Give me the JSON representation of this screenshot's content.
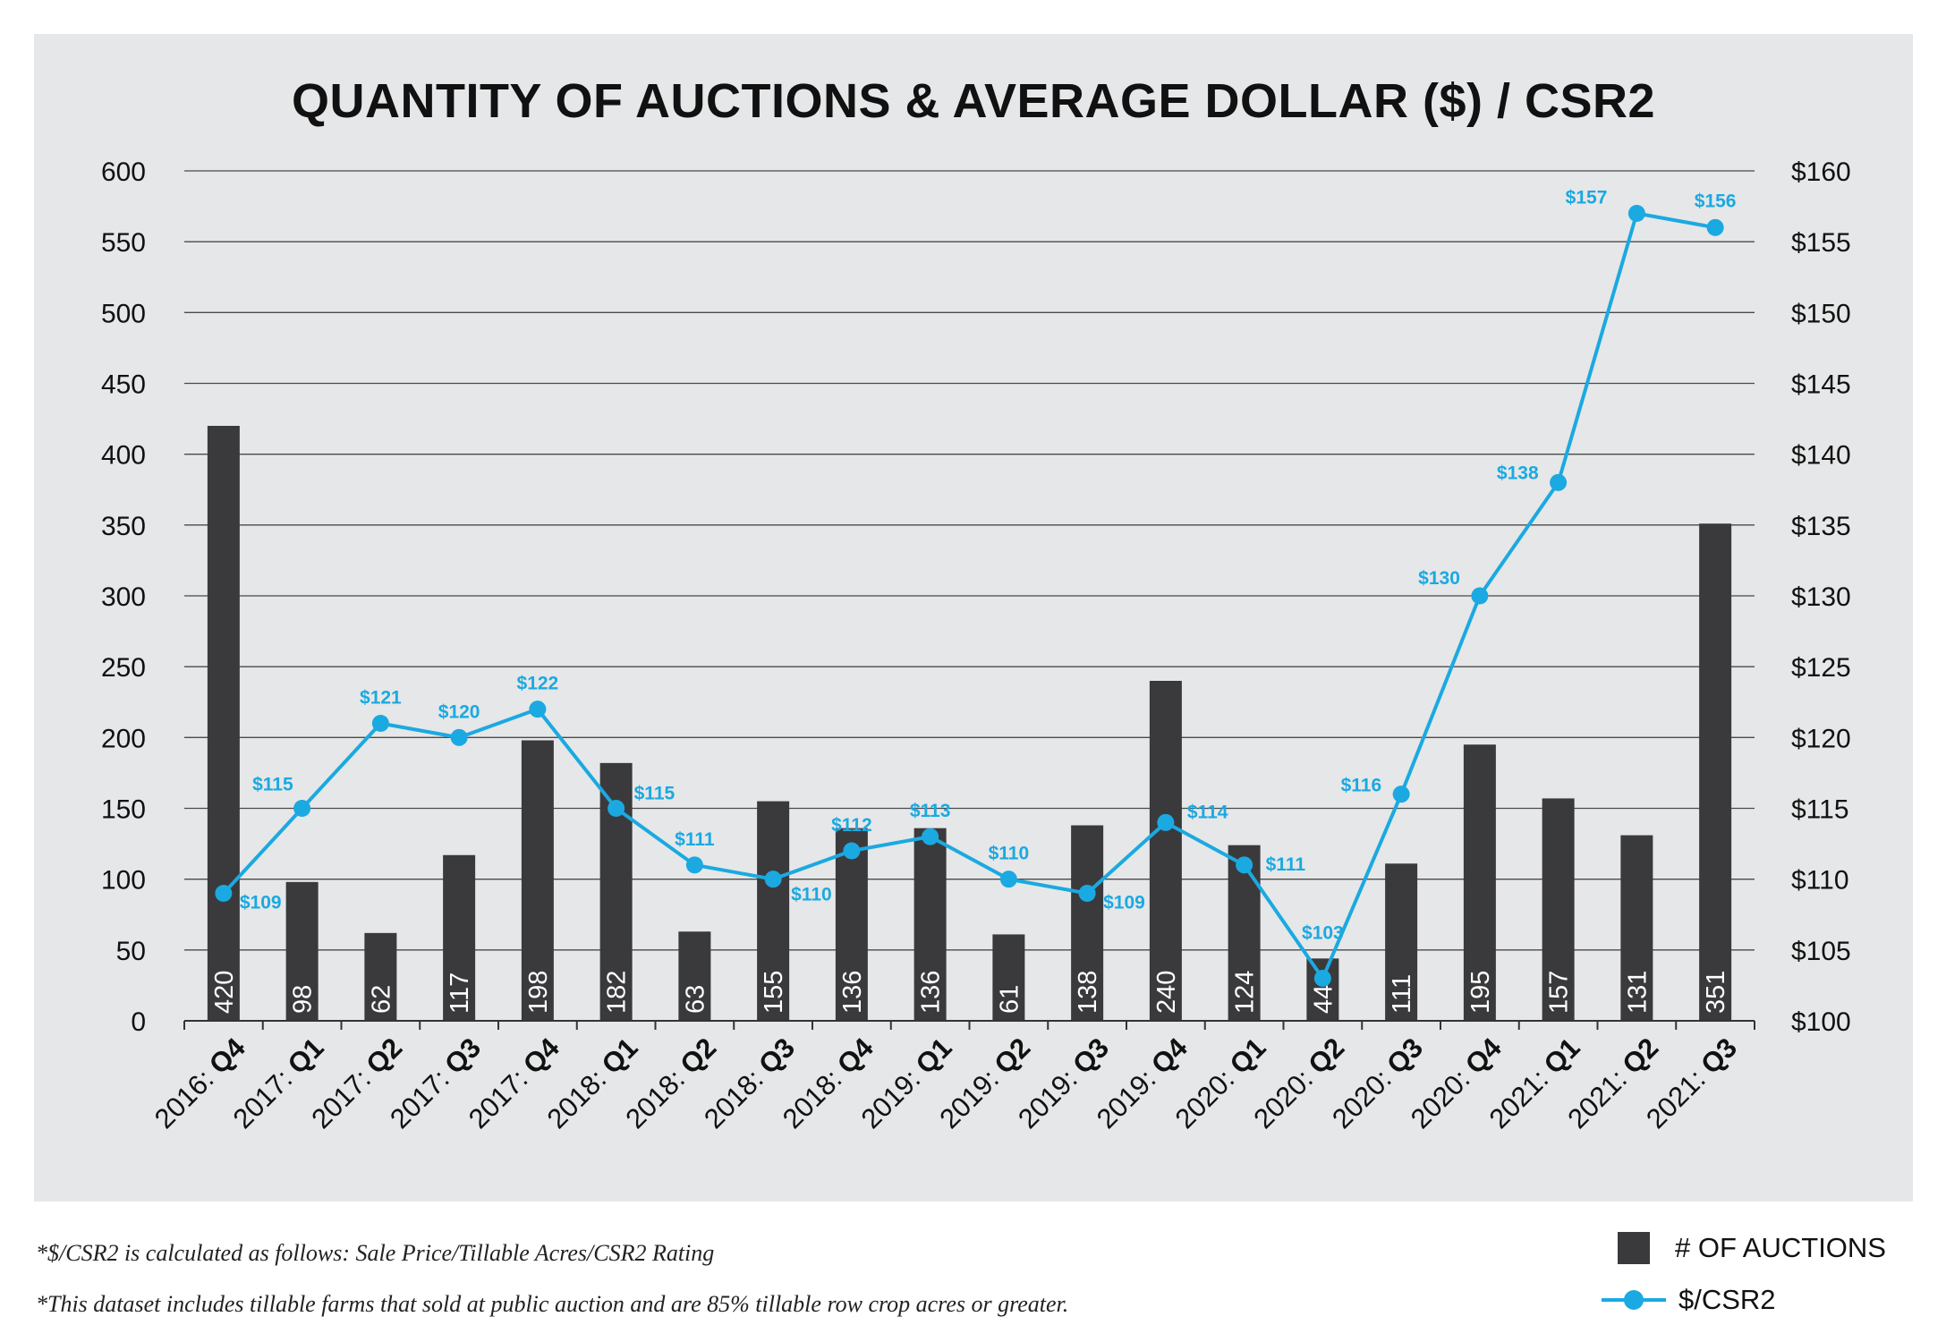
{
  "chart_data": {
    "type": "bar",
    "title": "QUANTITY OF AUCTIONS & AVERAGE DOLLAR ($) / CSR2",
    "categories": [
      {
        "year": "2016:",
        "quarter": "Q4"
      },
      {
        "year": "2017:",
        "quarter": "Q1"
      },
      {
        "year": "2017:",
        "quarter": "Q2"
      },
      {
        "year": "2017:",
        "quarter": "Q3"
      },
      {
        "year": "2017:",
        "quarter": "Q4"
      },
      {
        "year": "2018:",
        "quarter": "Q1"
      },
      {
        "year": "2018:",
        "quarter": "Q2"
      },
      {
        "year": "2018:",
        "quarter": "Q3"
      },
      {
        "year": "2018:",
        "quarter": "Q4"
      },
      {
        "year": "2019:",
        "quarter": "Q1"
      },
      {
        "year": "2019:",
        "quarter": "Q2"
      },
      {
        "year": "2019:",
        "quarter": "Q3"
      },
      {
        "year": "2019:",
        "quarter": "Q4"
      },
      {
        "year": "2020:",
        "quarter": "Q1"
      },
      {
        "year": "2020:",
        "quarter": "Q2"
      },
      {
        "year": "2020:",
        "quarter": "Q3"
      },
      {
        "year": "2020:",
        "quarter": "Q4"
      },
      {
        "year": "2021:",
        "quarter": "Q1"
      },
      {
        "year": "2021:",
        "quarter": "Q2"
      },
      {
        "year": "2021:",
        "quarter": "Q3"
      }
    ],
    "series": [
      {
        "name": "# OF AUCTIONS",
        "type": "bar",
        "axis": "left",
        "color": "#3a3a3c",
        "values": [
          420,
          98,
          62,
          117,
          198,
          182,
          63,
          155,
          136,
          136,
          61,
          138,
          240,
          124,
          44,
          111,
          195,
          157,
          131,
          351
        ]
      },
      {
        "name": "$/CSR2",
        "type": "line",
        "axis": "right",
        "color": "#1ba9e1",
        "values": [
          109,
          115,
          121,
          120,
          122,
          115,
          111,
          110,
          112,
          113,
          110,
          109,
          114,
          111,
          103,
          116,
          130,
          138,
          157,
          156
        ]
      }
    ],
    "y_left": {
      "min": 0,
      "max": 600,
      "ticks": [
        "0",
        "50",
        "100",
        "150",
        "200",
        "250",
        "300",
        "350",
        "400",
        "450",
        "500",
        "550",
        "600"
      ]
    },
    "y_right": {
      "min": 100,
      "max": 160,
      "ticks": [
        "$100",
        "$105",
        "$110",
        "$115",
        "$120",
        "$125",
        "$130",
        "$135",
        "$140",
        "$145",
        "$150",
        "$155",
        "$160"
      ]
    },
    "grid": true,
    "legend": "bottom-right"
  },
  "footnotes": [
    "*$/CSR2 is calculated as follows: Sale Price/Tillable Acres/CSR2 Rating",
    "*This dataset includes tillable farms that sold at public auction and are 85% tillable row crop acres or greater."
  ],
  "legend": {
    "bars_label": "# OF AUCTIONS",
    "line_label": "$/CSR2"
  }
}
